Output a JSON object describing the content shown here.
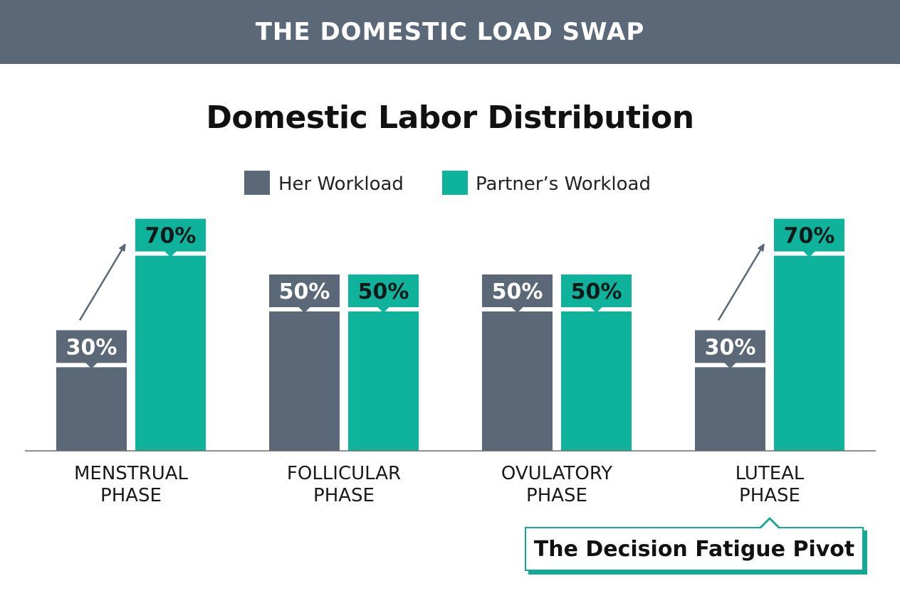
{
  "banner": {
    "title": "THE DOMESTIC LOAD SWAP"
  },
  "colors": {
    "banner": "#5a6878",
    "her": "#5a6878",
    "partner": "#0fb39c",
    "axis": "#6b6b6b",
    "annotation_border": "#14a897"
  },
  "annotation": {
    "text": "The Decision Fatigue Pivot",
    "target_category": "LUTEAL PHASE"
  },
  "chart_data": {
    "type": "bar",
    "title": "Domestic Labor Distribution",
    "categories": [
      "MENSTRUAL PHASE",
      "FOLLICULAR PHASE",
      "OVULATORY PHASE",
      "LUTEAL PHASE"
    ],
    "category_lines": [
      [
        "MENSTRUAL",
        "PHASE"
      ],
      [
        "FOLLICULAR",
        "PHASE"
      ],
      [
        "OVULATORY",
        "PHASE"
      ],
      [
        "LUTEAL",
        "PHASE"
      ]
    ],
    "series": [
      {
        "name": "Her Workload",
        "values": [
          30,
          50,
          50,
          30
        ],
        "labels": [
          "30%",
          "50%",
          "50%",
          "30%"
        ],
        "color": "#5a6878"
      },
      {
        "name": "Partner’s Workload",
        "values": [
          70,
          50,
          50,
          70
        ],
        "labels": [
          "70%",
          "50%",
          "50%",
          "70%"
        ],
        "color": "#0fb39c"
      }
    ],
    "ylim": [
      0,
      100
    ],
    "grid": false,
    "legend": "top-center",
    "arrows_from_series0_to_series1": [
      true,
      false,
      false,
      true
    ]
  }
}
